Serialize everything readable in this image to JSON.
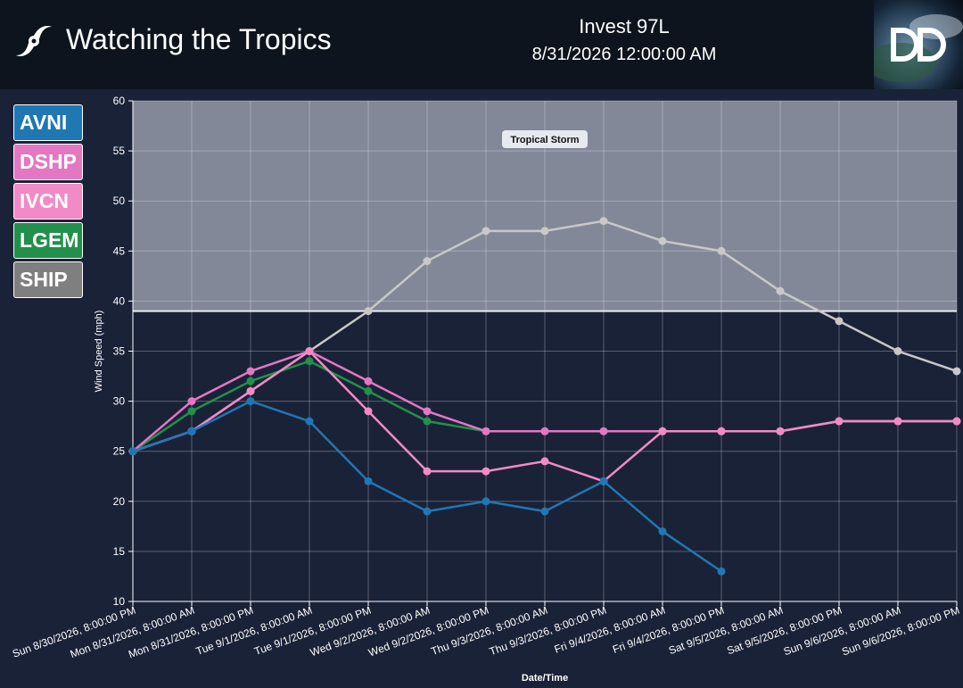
{
  "header": {
    "title": "Watching the Tropics",
    "storm_name": "Invest 97L",
    "storm_time": "8/31/2026 12:00:00 AM",
    "icon": "hurricane-icon",
    "logo": "dd-logo"
  },
  "legend": [
    {
      "label": "AVNI",
      "color": "#1f77b4"
    },
    {
      "label": "DSHP",
      "color": "#e377c2"
    },
    {
      "label": "IVCN",
      "color": "#f28ac6"
    },
    {
      "label": "LGEM",
      "color": "#22904a"
    },
    {
      "label": "SHIP",
      "color": "#7f7f7f"
    }
  ],
  "chart_data": {
    "type": "line",
    "title": "",
    "xlabel": "Date/Time",
    "ylabel": "Wind Speed (mph)",
    "ylim": [
      10,
      60
    ],
    "yticks": [
      10,
      15,
      20,
      25,
      30,
      35,
      40,
      45,
      50,
      55,
      60
    ],
    "grid": true,
    "categories": [
      "Sun 8/30/2026, 8:00:00 PM",
      "Mon 8/31/2026, 8:00:00 AM",
      "Mon 8/31/2026, 8:00:00 PM",
      "Tue 9/1/2026, 8:00:00 AM",
      "Tue 9/1/2026, 8:00:00 PM",
      "Wed 9/2/2026, 8:00:00 AM",
      "Wed 9/2/2026, 8:00:00 PM",
      "Thu 9/3/2026, 8:00:00 AM",
      "Thu 9/3/2026, 8:00:00 PM",
      "Fri 9/4/2026, 8:00:00 AM",
      "Fri 9/4/2026, 8:00:00 PM",
      "Sat 9/5/2026, 8:00:00 AM",
      "Sat 9/5/2026, 8:00:00 PM",
      "Sun 9/6/2026, 8:00:00 AM",
      "Sun 9/6/2026, 8:00:00 PM"
    ],
    "zones": [
      {
        "label": "Tropical Storm",
        "from": 39,
        "to": 60,
        "color": "#d8dde6"
      }
    ],
    "series": [
      {
        "name": "SHIP",
        "color": "#c8c8c8",
        "values": [
          25,
          27,
          31,
          35,
          39,
          44,
          47,
          47,
          48,
          46,
          45,
          41,
          38,
          35,
          33
        ]
      },
      {
        "name": "LGEM",
        "color": "#22904a",
        "values": [
          25,
          29,
          32,
          34,
          31,
          28,
          27,
          27,
          27,
          27,
          27,
          27,
          28,
          28,
          28
        ]
      },
      {
        "name": "DSHP",
        "color": "#e377c2",
        "values": [
          25,
          30,
          33,
          35,
          32,
          29,
          27,
          27,
          27,
          27,
          27,
          27,
          28,
          28,
          28
        ]
      },
      {
        "name": "IVCN",
        "color": "#f28ac6",
        "values": [
          25,
          27,
          31,
          35,
          29,
          23,
          23,
          24,
          22,
          27,
          27,
          27,
          28,
          28,
          28
        ]
      },
      {
        "name": "AVNI",
        "color": "#1f77b4",
        "values": [
          25,
          27,
          30,
          28,
          22,
          19,
          20,
          19,
          22,
          17,
          13,
          null,
          null,
          null,
          null
        ]
      }
    ]
  }
}
